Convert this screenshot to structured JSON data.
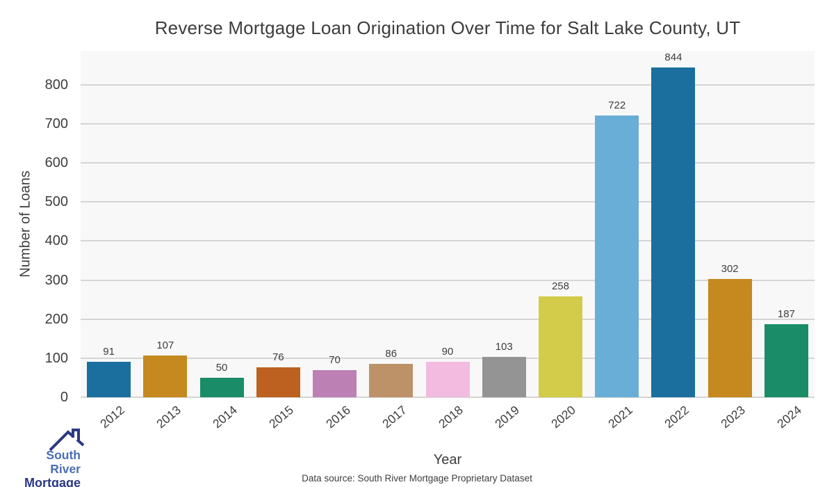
{
  "chart_data": {
    "type": "bar",
    "title": "Reverse Mortgage Loan Origination Over Time for Salt Lake County, UT",
    "xlabel": "Year",
    "ylabel": "Number of Loans",
    "categories": [
      "2012",
      "2013",
      "2014",
      "2015",
      "2016",
      "2017",
      "2018",
      "2019",
      "2020",
      "2021",
      "2022",
      "2023",
      "2024"
    ],
    "values": [
      91,
      107,
      50,
      76,
      70,
      86,
      90,
      103,
      258,
      722,
      844,
      302,
      187
    ],
    "bar_colors": [
      "#1b6f9f",
      "#c6891f",
      "#1a8c68",
      "#bc6120",
      "#bc80b4",
      "#bd9268",
      "#f3bbe0",
      "#949494",
      "#d3cb4a",
      "#68aed6",
      "#1b6f9f",
      "#c6891f",
      "#1a8c68"
    ],
    "ylim": [
      0,
      887
    ],
    "yticks": [
      0,
      100,
      200,
      300,
      400,
      500,
      600,
      700,
      800
    ],
    "grid": true,
    "legend": false,
    "grid_color": "#d5d5d5",
    "plot_bg_color": "#f8f8f8",
    "text_color": "#3d3d3d"
  },
  "footer": {
    "source": "Data source: South River Mortgage Proprietary Dataset"
  },
  "logo": {
    "line1": "South River",
    "line2": "Mortgage",
    "line1_color": "#4a6db5",
    "line2_color": "#2b3884",
    "roof_color": "#2b3884"
  }
}
